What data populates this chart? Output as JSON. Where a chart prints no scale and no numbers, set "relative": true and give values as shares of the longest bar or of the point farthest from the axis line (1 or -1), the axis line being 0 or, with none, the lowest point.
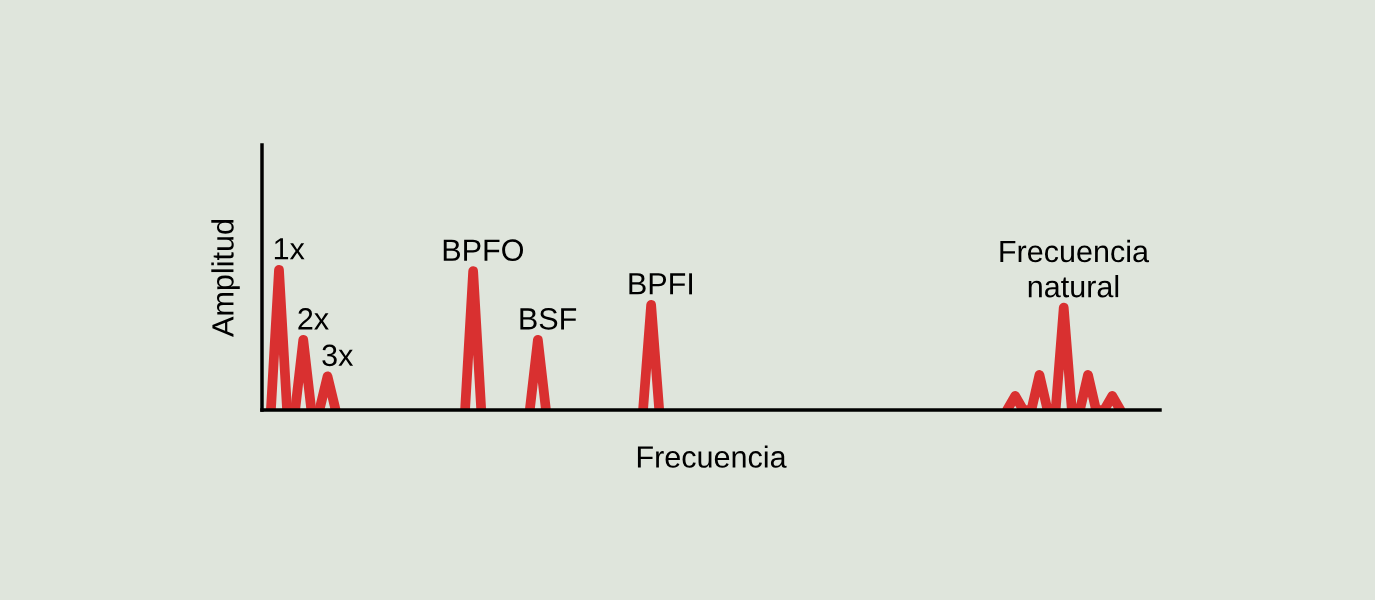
{
  "chart_data": {
    "type": "line",
    "relative": true,
    "xlabel": "Frecuencia",
    "ylabel": "Amplitud",
    "marker": "none",
    "line_style": "solid",
    "legend": false,
    "categories": [
      null,
      null,
      null,
      null,
      null,
      null,
      null,
      null,
      null,
      null,
      null,
      null,
      null,
      null,
      null,
      null,
      null,
      null,
      null,
      null,
      null,
      null,
      null,
      null,
      null,
      null,
      null,
      null,
      null,
      null,
      null,
      null,
      null,
      null,
      null,
      null,
      null,
      null,
      null,
      null,
      null,
      null,
      null,
      null,
      null,
      null,
      null,
      null,
      null,
      null,
      null,
      null,
      null,
      null,
      null,
      null,
      null,
      null,
      null,
      null,
      null,
      null,
      null,
      null,
      null,
      null,
      null,
      null,
      null,
      null,
      null,
      null,
      null,
      null,
      null,
      null,
      null,
      null,
      null,
      null,
      null,
      null,
      null,
      null,
      null,
      null,
      null,
      null,
      null,
      null,
      null,
      null,
      null,
      null,
      null,
      null,
      null,
      null,
      null,
      null,
      null,
      null,
      null,
      null,
      null,
      null,
      null,
      null,
      null,
      null,
      null
    ],
    "series": [
      {
        "name": "1x",
        "color": "#d93030",
        "values": [
          null,
          0,
          1.0,
          0,
          null,
          null,
          null,
          null,
          null,
          null,
          null,
          null,
          null,
          null,
          null,
          null,
          null,
          null,
          null,
          null,
          null,
          null,
          null,
          null,
          null,
          null,
          null,
          null,
          null,
          null,
          null,
          null,
          null,
          null,
          null,
          null,
          null,
          null,
          null,
          null,
          null,
          null,
          null,
          null,
          null,
          null,
          null,
          null,
          null,
          null,
          null,
          null,
          null,
          null,
          null,
          null,
          null,
          null,
          null,
          null,
          null,
          null,
          null,
          null,
          null,
          null,
          null,
          null,
          null,
          null,
          null,
          null,
          null,
          null,
          null,
          null,
          null,
          null,
          null,
          null,
          null,
          null,
          null,
          null,
          null,
          null,
          null,
          null,
          null,
          null,
          null,
          null,
          null,
          null,
          null,
          null,
          null,
          null,
          null,
          null,
          null,
          null,
          null,
          null,
          null,
          null,
          null,
          null,
          null,
          null,
          null
        ]
      },
      {
        "name": "2x",
        "color": "#d93030",
        "values": [
          null,
          null,
          null,
          null,
          0,
          0.5,
          0,
          null,
          null,
          null,
          null,
          null,
          null,
          null,
          null,
          null,
          null,
          null,
          null,
          null,
          null,
          null,
          null,
          null,
          null,
          null,
          null,
          null,
          null,
          null,
          null,
          null,
          null,
          null,
          null,
          null,
          null,
          null,
          null,
          null,
          null,
          null,
          null,
          null,
          null,
          null,
          null,
          null,
          null,
          null,
          null,
          null,
          null,
          null,
          null,
          null,
          null,
          null,
          null,
          null,
          null,
          null,
          null,
          null,
          null,
          null,
          null,
          null,
          null,
          null,
          null,
          null,
          null,
          null,
          null,
          null,
          null,
          null,
          null,
          null,
          null,
          null,
          null,
          null,
          null,
          null,
          null,
          null,
          null,
          null,
          null,
          null,
          null,
          null,
          null,
          null,
          null,
          null,
          null,
          null,
          null,
          null,
          null,
          null,
          null,
          null,
          null,
          null,
          null,
          null,
          null
        ]
      },
      {
        "name": "3x",
        "color": "#d93030",
        "values": [
          null,
          null,
          null,
          null,
          null,
          null,
          null,
          0,
          0.24,
          0,
          null,
          null,
          null,
          null,
          null,
          null,
          null,
          null,
          null,
          null,
          null,
          null,
          null,
          null,
          null,
          null,
          null,
          null,
          null,
          null,
          null,
          null,
          null,
          null,
          null,
          null,
          null,
          null,
          null,
          null,
          null,
          null,
          null,
          null,
          null,
          null,
          null,
          null,
          null,
          null,
          null,
          null,
          null,
          null,
          null,
          null,
          null,
          null,
          null,
          null,
          null,
          null,
          null,
          null,
          null,
          null,
          null,
          null,
          null,
          null,
          null,
          null,
          null,
          null,
          null,
          null,
          null,
          null,
          null,
          null,
          null,
          null,
          null,
          null,
          null,
          null,
          null,
          null,
          null,
          null,
          null,
          null,
          null,
          null,
          null,
          null,
          null,
          null,
          null,
          null,
          null,
          null,
          null,
          null,
          null,
          null,
          null,
          null,
          null,
          null,
          null
        ]
      },
      {
        "name": "BPFO",
        "color": "#d93030",
        "values": [
          null,
          null,
          null,
          null,
          null,
          null,
          null,
          null,
          null,
          null,
          null,
          null,
          null,
          null,
          null,
          null,
          null,
          null,
          null,
          null,
          null,
          null,
          null,
          null,
          null,
          0,
          0.99,
          0,
          null,
          null,
          null,
          null,
          null,
          null,
          null,
          null,
          null,
          null,
          null,
          null,
          null,
          null,
          null,
          null,
          null,
          null,
          null,
          null,
          null,
          null,
          null,
          null,
          null,
          null,
          null,
          null,
          null,
          null,
          null,
          null,
          null,
          null,
          null,
          null,
          null,
          null,
          null,
          null,
          null,
          null,
          null,
          null,
          null,
          null,
          null,
          null,
          null,
          null,
          null,
          null,
          null,
          null,
          null,
          null,
          null,
          null,
          null,
          null,
          null,
          null,
          null,
          null,
          null,
          null,
          null,
          null,
          null,
          null,
          null,
          null,
          null,
          null,
          null,
          null,
          null,
          null,
          null,
          null,
          null,
          null,
          null
        ]
      },
      {
        "name": "BSF",
        "color": "#d93030",
        "values": [
          null,
          null,
          null,
          null,
          null,
          null,
          null,
          null,
          null,
          null,
          null,
          null,
          null,
          null,
          null,
          null,
          null,
          null,
          null,
          null,
          null,
          null,
          null,
          null,
          null,
          null,
          null,
          null,
          null,
          null,
          null,
          null,
          null,
          0,
          0.5,
          0,
          null,
          null,
          null,
          null,
          null,
          null,
          null,
          null,
          null,
          null,
          null,
          null,
          null,
          null,
          null,
          null,
          null,
          null,
          null,
          null,
          null,
          null,
          null,
          null,
          null,
          null,
          null,
          null,
          null,
          null,
          null,
          null,
          null,
          null,
          null,
          null,
          null,
          null,
          null,
          null,
          null,
          null,
          null,
          null,
          null,
          null,
          null,
          null,
          null,
          null,
          null,
          null,
          null,
          null,
          null,
          null,
          null,
          null,
          null,
          null,
          null,
          null,
          null,
          null,
          null,
          null,
          null,
          null,
          null,
          null,
          null,
          null,
          null,
          null,
          null
        ]
      },
      {
        "name": "BPFI",
        "color": "#d93030",
        "values": [
          null,
          null,
          null,
          null,
          null,
          null,
          null,
          null,
          null,
          null,
          null,
          null,
          null,
          null,
          null,
          null,
          null,
          null,
          null,
          null,
          null,
          null,
          null,
          null,
          null,
          null,
          null,
          null,
          null,
          null,
          null,
          null,
          null,
          null,
          null,
          null,
          null,
          null,
          null,
          null,
          null,
          null,
          null,
          null,
          null,
          null,
          null,
          0,
          0.75,
          0,
          null,
          null,
          null,
          null,
          null,
          null,
          null,
          null,
          null,
          null,
          null,
          null,
          null,
          null,
          null,
          null,
          null,
          null,
          null,
          null,
          null,
          null,
          null,
          null,
          null,
          null,
          null,
          null,
          null,
          null,
          null,
          null,
          null,
          null,
          null,
          null,
          null,
          null,
          null,
          null,
          null,
          null,
          null,
          null,
          null,
          null,
          null,
          null,
          null,
          null,
          null,
          null,
          null,
          null,
          null,
          null,
          null,
          null,
          null,
          null,
          null
        ]
      },
      {
        "name": "Frecuencia\nnatural",
        "color": "#d93030",
        "values": [
          null,
          null,
          null,
          null,
          null,
          null,
          null,
          null,
          null,
          null,
          null,
          null,
          null,
          null,
          null,
          null,
          null,
          null,
          null,
          null,
          null,
          null,
          null,
          null,
          null,
          null,
          null,
          null,
          null,
          null,
          null,
          null,
          null,
          null,
          null,
          null,
          null,
          null,
          null,
          null,
          null,
          null,
          null,
          null,
          null,
          null,
          null,
          null,
          null,
          null,
          null,
          null,
          null,
          null,
          null,
          null,
          null,
          null,
          null,
          null,
          null,
          null,
          null,
          null,
          null,
          null,
          null,
          null,
          null,
          null,
          null,
          null,
          null,
          null,
          null,
          null,
          null,
          null,
          null,
          null,
          null,
          null,
          null,
          null,
          null,
          null,
          null,
          null,
          null,
          null,
          null,
          null,
          0,
          0.1,
          0,
          0,
          0.25,
          0,
          0,
          0.73,
          0,
          0,
          0.25,
          0,
          0,
          0.1,
          0,
          null,
          null,
          null,
          null
        ]
      }
    ]
  }
}
